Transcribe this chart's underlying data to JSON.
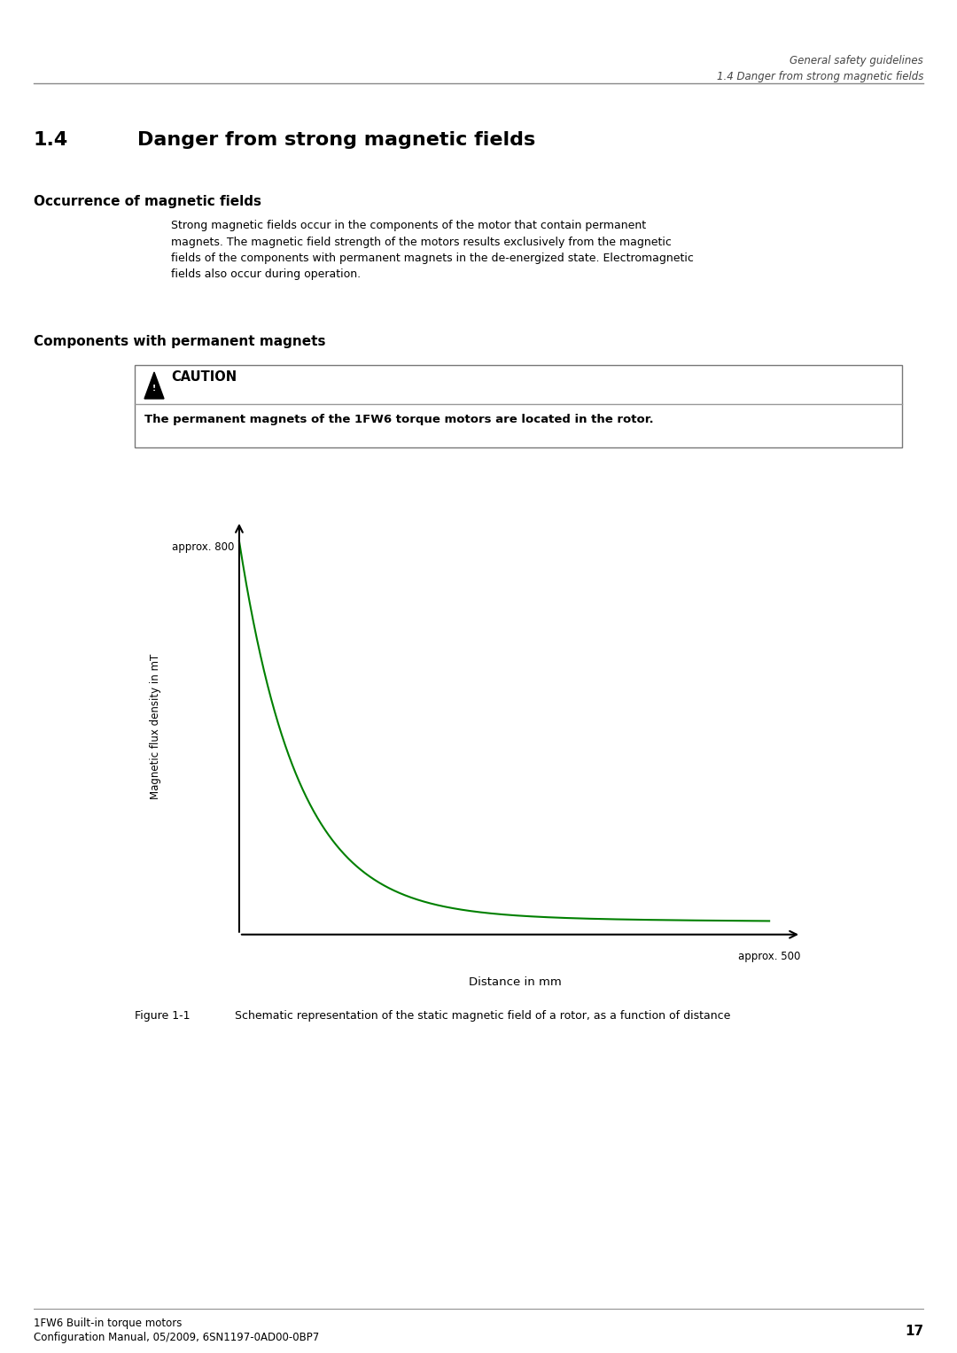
{
  "page_header_line1": "General safety guidelines",
  "page_header_line2": "1.4 Danger from strong magnetic fields",
  "section_number": "1.4",
  "section_title": "Danger from strong magnetic fields",
  "subsection1_title": "Occurrence of magnetic fields",
  "subsection1_text": "Strong magnetic fields occur in the components of the motor that contain permanent\nmagnets. The magnetic field strength of the motors results exclusively from the magnetic\nfields of the components with permanent magnets in the de-energized state. Electromagnetic\nfields also occur during operation.",
  "subsection2_title": "Components with permanent magnets",
  "caution_label": "CAUTION",
  "caution_text": "The permanent magnets of the 1FW6 torque motors are located in the rotor.",
  "ylabel_text": "Magnetic flux density in mT",
  "xlabel_text": "Distance in mm",
  "y_label_approx": "approx. 800",
  "x_label_approx": "approx. 500",
  "figure_label": "Figure 1-1",
  "figure_caption": "Schematic representation of the static magnetic field of a rotor, as a function of distance",
  "footer_line1": "1FW6 Built-in torque motors",
  "footer_line2": "Configuration Manual, 05/2009, 6SN1197-0AD00-0BP7",
  "footer_page": "17",
  "curve_color": "#008000",
  "bg_color": "#FFFFFF",
  "text_color": "#000000",
  "header_line_color": "#808080"
}
